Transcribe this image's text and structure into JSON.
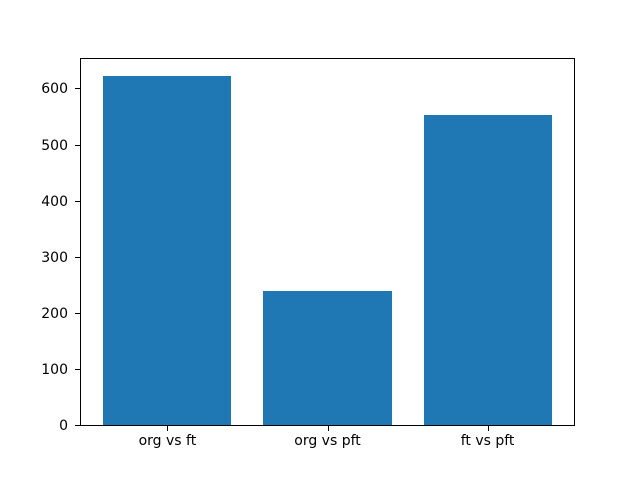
{
  "figure": {
    "background": "#ffffff"
  },
  "chart_data": {
    "type": "bar",
    "title": "",
    "xlabel": "",
    "ylabel": "",
    "categories": [
      "org vs ft",
      "org vs pft",
      "ft vs pft"
    ],
    "values": [
      625,
      240,
      555
    ],
    "ylim": [
      0,
      656
    ],
    "yticks": [
      0,
      100,
      200,
      300,
      400,
      500,
      600
    ],
    "bar_color": "#1f77b4",
    "bar_width_fraction": 0.8,
    "axis_color": "#000000",
    "text_color": "#000000",
    "grid": false,
    "legend": "none"
  }
}
